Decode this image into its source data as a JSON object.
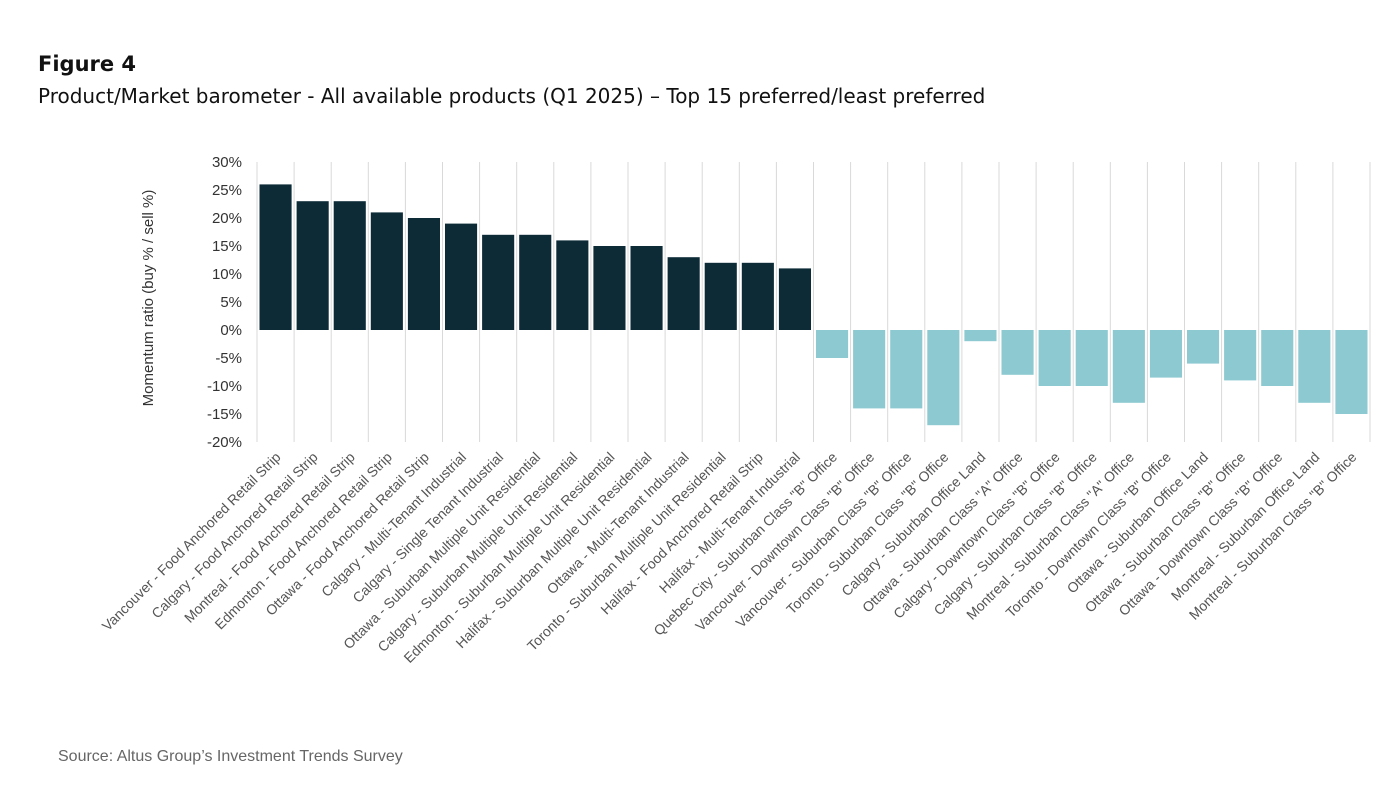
{
  "figure_label": "Figure 4",
  "figure_title": "Product/Market barometer - All available products (Q1 2025) – Top 15 preferred/least preferred",
  "source": "Source:  Altus Group’s Investment Trends Survey",
  "colors": {
    "positive": "#0c2b37",
    "negative": "#8cc9d0",
    "grid": "#d9d9d9"
  },
  "chart_data": {
    "type": "bar",
    "title": "",
    "xlabel": "",
    "ylabel": "Momentum ratio (buy % / sell %)",
    "ylim": [
      -20,
      30
    ],
    "yticks": [
      30,
      25,
      20,
      15,
      10,
      5,
      0,
      -5,
      -10,
      -15,
      -20
    ],
    "ytick_labels": [
      "30%",
      "25%",
      "20%",
      "15%",
      "10%",
      "5%",
      "0%",
      "-5%",
      "-10%",
      "-15%",
      "-20%"
    ],
    "grid": "vertical",
    "categories": [
      "Vancouver - Food Anchored Retail Strip",
      "Calgary - Food Anchored Retail Strip",
      "Montreal - Food Anchored Retail Strip",
      "Edmonton - Food Anchored Retail Strip",
      "Ottawa - Food Anchored Retail Strip",
      "Calgary - Multi-Tenant Industrial",
      "Calgary - Single Tenant Industrial",
      "Ottawa - Suburban Multiple Unit Residential",
      "Calgary - Suburban Multiple Unit Residential",
      "Edmonton - Suburban Multiple Unit Residential",
      "Halifax - Suburban Multiple Unit Residential",
      "Ottawa - Multi-Tenant Industrial",
      "Toronto - Suburban Multiple Unit Residential",
      "Halifax - Food Anchored Retail Strip",
      "Halifax - Multi-Tenant Industrial",
      "Quebec City - Suburban Class \"B\" Office",
      "Vancouver - Downtown Class \"B\" Office",
      "Vancouver - Suburban Class \"B\" Office",
      "Toronto - Suburban Class \"B\" Office",
      "Calgary - Suburban Office Land",
      "Ottawa - Suburban Class \"A\" Office",
      "Calgary - Downtown Class \"B\" Office",
      "Calgary - Suburban Class \"B\" Office",
      "Montreal - Suburban Class \"A\" Office",
      "Toronto - Downtown Class \"B\" Office",
      "Ottawa - Suburban Office Land",
      "Ottawa - Suburban Class \"B\" Office",
      "Ottawa - Downtown Class \"B\" Office",
      "Montreal - Suburban Office Land",
      "Montreal - Suburban Class \"B\" Office"
    ],
    "values": [
      26,
      23,
      23,
      21,
      20,
      19,
      17,
      17,
      16,
      15,
      15,
      13,
      12,
      12,
      11,
      -5,
      -14,
      -14,
      -17,
      -2,
      -8,
      -10,
      -10,
      -13,
      -8.5,
      -6,
      -9,
      -10,
      -13,
      -15
    ]
  }
}
